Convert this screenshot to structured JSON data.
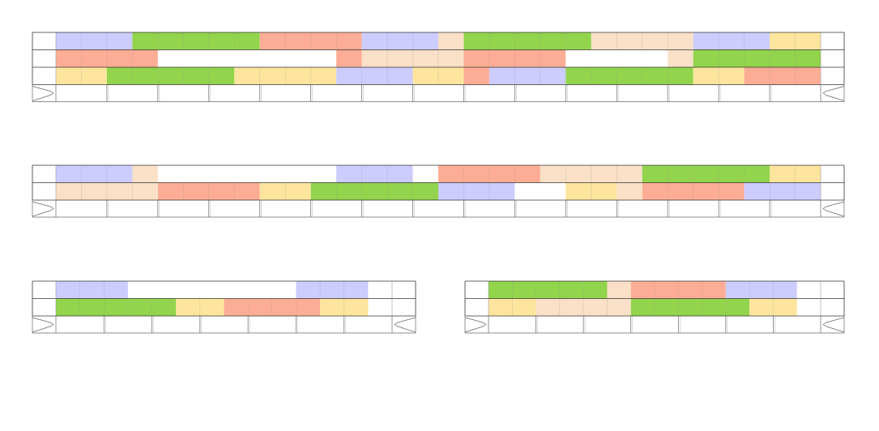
{
  "colors": {
    "blue": "#ccccff",
    "green": "#92d44c",
    "salmon": "#fdad95",
    "peach": "#f9e0c6",
    "yellow": "#fde59e",
    "empty": "#ffffff",
    "outline": "#333333",
    "cellLine": "#999999",
    "capacityLine": "#666666"
  },
  "unitsPerSlot": 2,
  "blocks": [
    {
      "name": "block-1",
      "slots": 15,
      "rows": [
        [
          [
            "blue",
            3
          ],
          [
            "green",
            5
          ],
          [
            "salmon",
            4
          ],
          [
            "blue",
            3
          ],
          [
            "peach",
            1
          ],
          [
            "green",
            5
          ],
          [
            "peach",
            4
          ],
          [
            "blue",
            3
          ],
          [
            "yellow",
            2
          ]
        ],
        [
          [
            "salmon",
            4
          ],
          [
            "empty",
            7
          ],
          [
            "salmon",
            1
          ],
          [
            "peach",
            4
          ],
          [
            "salmon",
            4
          ],
          [
            "empty",
            4
          ],
          [
            "peach",
            1
          ],
          [
            "green",
            5
          ]
        ],
        [
          [
            "yellow",
            2
          ],
          [
            "green",
            5
          ],
          [
            "yellow",
            4
          ],
          [
            "blue",
            3
          ],
          [
            "yellow",
            2
          ],
          [
            "salmon",
            1
          ],
          [
            "blue",
            3
          ],
          [
            "green",
            5
          ],
          [
            "yellow",
            2
          ],
          [
            "salmon",
            3
          ]
        ]
      ]
    },
    {
      "name": "block-2",
      "slots": 15,
      "rows": [
        [
          [
            "blue",
            3
          ],
          [
            "peach",
            1
          ],
          [
            "empty",
            7
          ],
          [
            "blue",
            3
          ],
          [
            "empty",
            1
          ],
          [
            "salmon",
            4
          ],
          [
            "peach",
            4
          ],
          [
            "green",
            5
          ],
          [
            "yellow",
            2
          ]
        ],
        [
          [
            "peach",
            4
          ],
          [
            "salmon",
            4
          ],
          [
            "yellow",
            2
          ],
          [
            "green",
            5
          ],
          [
            "blue",
            3
          ],
          [
            "empty",
            2
          ],
          [
            "yellow",
            2
          ],
          [
            "peach",
            1
          ],
          [
            "salmon",
            4
          ],
          [
            "blue",
            3
          ]
        ]
      ]
    },
    {
      "name": "block-3",
      "slots": 7,
      "rows": [
        [
          [
            "blue",
            3
          ],
          [
            "empty",
            7
          ],
          [
            "blue",
            3
          ]
        ],
        [
          [
            "green",
            5
          ],
          [
            "yellow",
            2
          ],
          [
            "salmon",
            4
          ],
          [
            "yellow",
            2
          ]
        ]
      ]
    },
    {
      "name": "block-4",
      "slots": 7,
      "rows": [
        [
          [
            "green",
            5
          ],
          [
            "peach",
            1
          ],
          [
            "salmon",
            4
          ],
          [
            "blue",
            3
          ]
        ],
        [
          [
            "yellow",
            2
          ],
          [
            "peach",
            4
          ],
          [
            "green",
            5
          ],
          [
            "yellow",
            2
          ]
        ]
      ]
    }
  ]
}
